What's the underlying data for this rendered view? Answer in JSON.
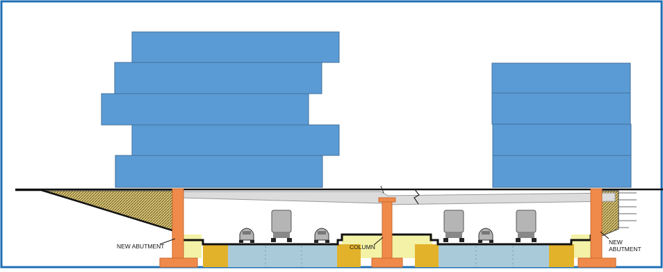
{
  "labels": {
    "abutment_left": "NEW ABUTMENT",
    "column": "COLUMN",
    "abutment_right_line1": "NEW",
    "abutment_right_line2": "ABUTMENT"
  },
  "colors": {
    "frame_border": "#1f6fb5",
    "building_fill": "#5b9bd5",
    "building_stroke": "#41719c",
    "abutment": "#f08a4b",
    "deck": "#dcdcdc",
    "soil_hatch": "#8c7a2f",
    "lane_pale_yellow": "#f3f2a6",
    "drainage_gold": "#e3b22b",
    "roadbed_blue": "#a9cbd9",
    "vehicle_gray": "#b5b5b5",
    "ground_line": "#111111"
  },
  "icons": [
    "car-icon",
    "truck-icon"
  ]
}
